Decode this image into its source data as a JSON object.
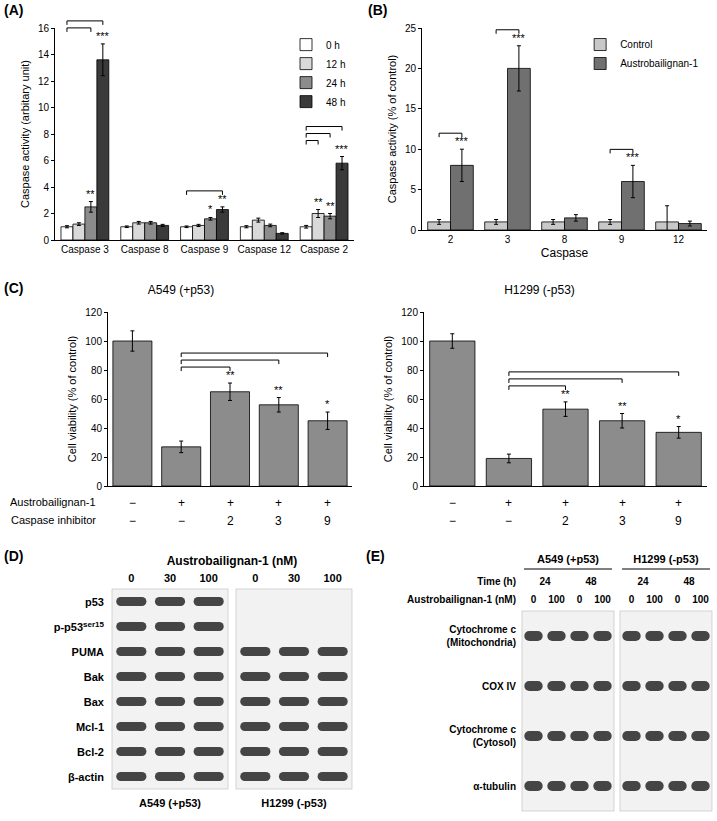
{
  "panel_labels": [
    "(A)",
    "(B)",
    "(C)",
    "(D)",
    "(E)"
  ],
  "chart_data": [
    {
      "type": "bar",
      "y_label": "Caspase activity (arbitary unit)",
      "categories": [
        "Caspase 3",
        "Caspase 8",
        "Caspase 9",
        "Caspase 12",
        "Caspase 2"
      ],
      "series": [
        {
          "name": "0 h",
          "color": "#ffffff",
          "values": [
            1.0,
            1.0,
            1.0,
            1.0,
            1.0
          ],
          "errors": [
            0.08,
            0.06,
            0.06,
            0.08,
            0.1
          ]
        },
        {
          "name": "12 h",
          "color": "#d9d9d9",
          "values": [
            1.2,
            1.3,
            1.1,
            1.5,
            2.0
          ],
          "errors": [
            0.1,
            0.1,
            0.08,
            0.15,
            0.3
          ]
        },
        {
          "name": "24 h",
          "color": "#8c8c8c",
          "values": [
            2.5,
            1.3,
            1.6,
            1.1,
            1.8
          ],
          "errors": [
            0.4,
            0.1,
            0.1,
            0.1,
            0.2
          ]
        },
        {
          "name": "48 h",
          "color": "#3a3a3a",
          "values": [
            13.6,
            1.1,
            2.3,
            0.5,
            5.8
          ],
          "errors": [
            1.2,
            0.08,
            0.2,
            0.05,
            0.5
          ]
        }
      ],
      "ylim": [
        0,
        16
      ],
      "yticks": [
        0,
        2,
        4,
        6,
        8,
        10,
        12,
        14,
        16
      ],
      "legend": "top right",
      "annotations": [
        {
          "category": 0,
          "series": 2,
          "text": "**",
          "bracket_from": 0
        },
        {
          "category": 0,
          "series": 3,
          "text": "***",
          "bracket_from": 0
        },
        {
          "category": 2,
          "series": 2,
          "text": "*"
        },
        {
          "category": 2,
          "series": 3,
          "text": "**",
          "bracket_from": 0
        },
        {
          "category": 4,
          "series": 1,
          "text": "**",
          "bracket_from": 0
        },
        {
          "category": 4,
          "series": 2,
          "text": "**",
          "bracket_from": 0
        },
        {
          "category": 4,
          "series": 3,
          "text": "***",
          "bracket_from": 0
        }
      ]
    },
    {
      "type": "bar",
      "x_label": "Caspase",
      "y_label": "Caspase activity (% of control)",
      "categories": [
        "2",
        "3",
        "8",
        "9",
        "12"
      ],
      "series": [
        {
          "name": "Control",
          "color": "#c8c8c8",
          "values": [
            1,
            1,
            1,
            1,
            1
          ],
          "errors": [
            0.3,
            0.3,
            0.3,
            0.3,
            2.0
          ]
        },
        {
          "name": "Austrobailignan-1",
          "color": "#707070",
          "values": [
            8,
            20,
            1.5,
            6,
            0.8
          ],
          "errors": [
            2,
            2.8,
            0.4,
            2,
            0.3
          ]
        }
      ],
      "ylim": [
        0,
        25
      ],
      "yticks": [
        0,
        5,
        10,
        15,
        20,
        25
      ],
      "legend": "top right",
      "annotations": [
        {
          "category": 0,
          "series": 1,
          "text": "***",
          "bracket_from": 0
        },
        {
          "category": 1,
          "series": 1,
          "text": "***",
          "bracket_from": 0
        },
        {
          "category": 3,
          "series": 1,
          "text": "***",
          "bracket_from": 0
        }
      ]
    },
    {
      "type": "bar",
      "title": "A549 (+p53)",
      "y_label": "Cell viability (% of control)",
      "conditions": [
        {
          "label": "Austrobailignan-1",
          "values": [
            "−",
            "+",
            "+",
            "+",
            "+"
          ]
        },
        {
          "label": "Caspase inhibitor",
          "values": [
            "−",
            "−",
            "2",
            "3",
            "9"
          ]
        }
      ],
      "values": [
        100,
        27,
        65,
        56,
        45
      ],
      "errors": [
        7,
        4,
        6,
        5,
        6
      ],
      "color": "#8c8c8c",
      "ylim": [
        0,
        120
      ],
      "yticks": [
        0,
        20,
        40,
        60,
        80,
        100,
        120
      ],
      "tick_labels": "y",
      "annotations": [
        {
          "category": 2,
          "text": "**",
          "bracket_from": 1
        },
        {
          "category": 3,
          "text": "**",
          "bracket_from": 1
        },
        {
          "category": 4,
          "text": "*",
          "bracket_from": 1
        }
      ]
    },
    {
      "type": "bar",
      "title": "H1299 (-p53)",
      "y_label": "Cell viability (% of control)",
      "conditions": [
        {
          "values": [
            "−",
            "+",
            "+",
            "+",
            "+"
          ]
        },
        {
          "values": [
            "−",
            "−",
            "2",
            "3",
            "9"
          ]
        }
      ],
      "values": [
        100,
        19,
        53,
        45,
        37
      ],
      "errors": [
        5,
        3,
        5,
        5,
        4
      ],
      "color": "#8c8c8c",
      "ylim": [
        0,
        120
      ],
      "yticks": [
        0,
        20,
        40,
        60,
        80,
        100,
        120
      ],
      "tick_labels": "y",
      "annotations": [
        {
          "category": 2,
          "text": "**",
          "bracket_from": 1
        },
        {
          "category": 3,
          "text": "**",
          "bracket_from": 1
        },
        {
          "category": 4,
          "text": "*",
          "bracket_from": 1
        }
      ]
    }
  ],
  "blots": [
    {
      "title": "Austrobailignan-1 (nM)",
      "lanes": [
        "0",
        "30",
        "100"
      ],
      "groups": [
        "A549 (+p53)",
        "H1299 (-p53)"
      ],
      "rows": [
        {
          "label": "p53",
          "bands": [
            true,
            true,
            true,
            false,
            false,
            false
          ]
        },
        {
          "label": "p-p53",
          "superscript": "ser15",
          "bands": [
            true,
            true,
            true,
            false,
            false,
            false
          ]
        },
        {
          "label": "PUMA",
          "bands": [
            true,
            true,
            true,
            true,
            true,
            true
          ]
        },
        {
          "label": "Bak",
          "bands": [
            true,
            true,
            true,
            true,
            true,
            true
          ]
        },
        {
          "label": "Bax",
          "bands": [
            true,
            true,
            true,
            true,
            true,
            true
          ]
        },
        {
          "label": "Mcl-1",
          "bands": [
            true,
            true,
            true,
            true,
            true,
            true
          ]
        },
        {
          "label": "Bcl-2",
          "bands": [
            true,
            true,
            true,
            true,
            true,
            true
          ]
        },
        {
          "label": "β-actin",
          "bands": [
            true,
            true,
            true,
            true,
            true,
            true
          ]
        }
      ]
    },
    {
      "groups": [
        "A549 (+p53)",
        "H1299 (-p53)"
      ],
      "time": {
        "label": "Time (h)",
        "values": [
          "24",
          "48"
        ]
      },
      "dose": {
        "label": "Austrobailignan-1 (nM)",
        "values": [
          "0",
          "100"
        ]
      },
      "rows": [
        {
          "label": "Cytochrome c (Mitochondria)"
        },
        {
          "label": "COX IV"
        },
        {
          "label": "Cytochrome c (Cytosol)"
        },
        {
          "label": "α-tubulin"
        }
      ]
    }
  ]
}
